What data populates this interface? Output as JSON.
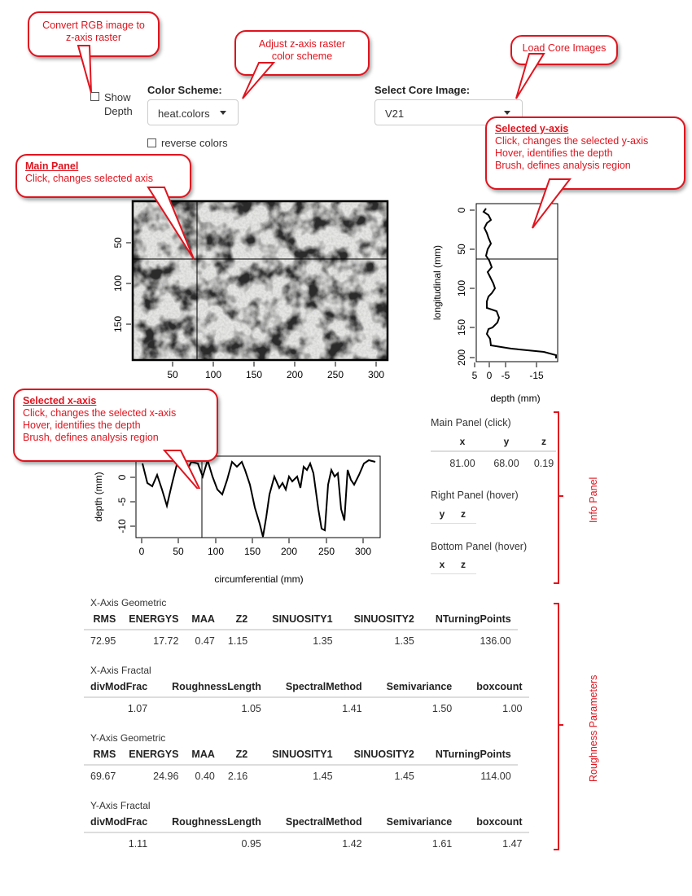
{
  "callouts": {
    "convert": [
      "Convert RGB image to",
      "z-axis raster"
    ],
    "colorscheme": [
      "Adjust z-axis raster",
      "color scheme"
    ],
    "load": "Load Core Images",
    "selected_y": {
      "title": "Selected y-axis",
      "lines": [
        "Click, changes the selected y-axis",
        "Hover, identifies the depth",
        "Brush, defines analysis region"
      ]
    },
    "main_panel": {
      "title": "Main Panel",
      "lines": [
        "Click, changes selected axis"
      ]
    },
    "selected_x": {
      "title": "Selected x-axis",
      "lines": [
        "Click, changes the selected x-axis",
        "Hover, identifies the depth",
        "Brush, defines analysis region"
      ]
    }
  },
  "controls": {
    "show_depth": [
      "Show",
      "Depth"
    ],
    "color_scheme_label": "Color Scheme:",
    "color_scheme_value": "heat.colors",
    "reverse_colors": "reverse colors",
    "core_image_label": "Select Core Image:",
    "core_image_value": "V21"
  },
  "main_panel": {
    "x_ticks": [
      "50",
      "100",
      "150",
      "200",
      "250",
      "300"
    ],
    "y_ticks": [
      "50",
      "100",
      "150"
    ]
  },
  "right_panel": {
    "xlabel": "depth (mm)",
    "ylabel": "longitudinal (mm)",
    "x_ticks": [
      "5",
      "0",
      "-5",
      "-15"
    ],
    "y_ticks": [
      "0",
      "50",
      "100",
      "150",
      "200"
    ]
  },
  "bottom_panel": {
    "xlabel": "circumferential (mm)",
    "ylabel": "depth (mm)",
    "x_ticks": [
      "0",
      "50",
      "100",
      "150",
      "200",
      "250",
      "300"
    ],
    "y_ticks": [
      "0",
      "-5",
      "-10"
    ]
  },
  "info_panel": {
    "label": "Info Panel",
    "main_title": "Main Panel (click)",
    "main_headers": [
      "x",
      "y",
      "z"
    ],
    "main_values": [
      "81.00",
      "68.00",
      "0.19"
    ],
    "right_title": "Right Panel (hover)",
    "right_headers": [
      "y",
      "z"
    ],
    "bottom_title": "Bottom Panel (hover)",
    "bottom_headers": [
      "x",
      "z"
    ]
  },
  "roughness": {
    "label": "Roughness Parameters",
    "x_geo": {
      "title": "X-Axis Geometric",
      "headers": [
        "RMS",
        "ENERGYS",
        "MAA",
        "Z2",
        "SINUOSITY1",
        "SINUOSITY2",
        "NTurningPoints"
      ],
      "values": [
        "72.95",
        "17.72",
        "0.47",
        "1.15",
        "1.35",
        "1.35",
        "136.00"
      ]
    },
    "x_frac": {
      "title": "X-Axis Fractal",
      "headers": [
        "divModFrac",
        "RoughnessLength",
        "SpectralMethod",
        "Semivariance",
        "boxcount"
      ],
      "values": [
        "1.07",
        "1.05",
        "1.41",
        "1.50",
        "1.00"
      ]
    },
    "y_geo": {
      "title": "Y-Axis Geometric",
      "headers": [
        "RMS",
        "ENERGYS",
        "MAA",
        "Z2",
        "SINUOSITY1",
        "SINUOSITY2",
        "NTurningPoints"
      ],
      "values": [
        "69.67",
        "24.96",
        "0.40",
        "2.16",
        "1.45",
        "1.45",
        "114.00"
      ]
    },
    "y_frac": {
      "title": "Y-Axis Fractal",
      "headers": [
        "divModFrac",
        "RoughnessLength",
        "SpectralMethod",
        "Semivariance",
        "boxcount"
      ],
      "values": [
        "1.11",
        "0.95",
        "1.42",
        "1.61",
        "1.47"
      ]
    }
  },
  "colors": {
    "accent": "#e0141e",
    "rule": "#dddddd"
  }
}
